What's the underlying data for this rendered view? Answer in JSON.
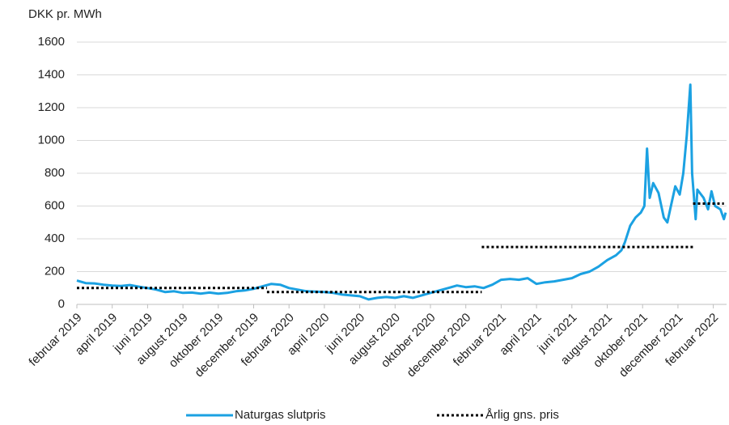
{
  "chart_data": {
    "type": "line",
    "y_label": "DKK pr. MWh",
    "xlim": [
      0,
      36.75
    ],
    "xticks": [
      {
        "value": 0,
        "label": "februar 2019"
      },
      {
        "value": 2,
        "label": "april 2019"
      },
      {
        "value": 4,
        "label": "juni 2019"
      },
      {
        "value": 6,
        "label": "august 2019"
      },
      {
        "value": 8,
        "label": "oktober 2019"
      },
      {
        "value": 10,
        "label": "december 2019"
      },
      {
        "value": 12,
        "label": "februar 2020"
      },
      {
        "value": 14,
        "label": "april 2020"
      },
      {
        "value": 16,
        "label": "juni 2020"
      },
      {
        "value": 18,
        "label": "august 2020"
      },
      {
        "value": 20,
        "label": "oktober 2020"
      },
      {
        "value": 22,
        "label": "december 2020"
      },
      {
        "value": 24,
        "label": "februar 2021"
      },
      {
        "value": 26,
        "label": "april 2021"
      },
      {
        "value": 28,
        "label": "juni 2021"
      },
      {
        "value": 30,
        "label": "august 2021"
      },
      {
        "value": 32,
        "label": "oktober 2021"
      },
      {
        "value": 34,
        "label": "december 2021"
      },
      {
        "value": 36,
        "label": "februar 2022"
      }
    ],
    "ylim": [
      0,
      1600
    ],
    "yticks": [
      0,
      200,
      400,
      600,
      800,
      1000,
      1200,
      1400,
      1600
    ],
    "grid": true,
    "legend": "bottom",
    "series": [
      {
        "name": "Naturgas slutpris",
        "color": "#1ba1e2",
        "style": "solid",
        "x": [
          0,
          0.5,
          1,
          1.5,
          2,
          2.5,
          3,
          3.5,
          4,
          4.5,
          5,
          5.5,
          6,
          6.5,
          7,
          7.5,
          8,
          8.5,
          9,
          9.5,
          10,
          10.5,
          11,
          11.5,
          12,
          12.5,
          13,
          13.5,
          14,
          14.5,
          15,
          15.5,
          16,
          16.5,
          17,
          17.5,
          18,
          18.5,
          19,
          19.5,
          20,
          20.5,
          21,
          21.5,
          22,
          22.5,
          23,
          23.5,
          24,
          24.5,
          25,
          25.5,
          26,
          26.5,
          27,
          27.5,
          28,
          28.5,
          29,
          29.5,
          30,
          30.5,
          30.8,
          31,
          31.3,
          31.6,
          31.9,
          32.1,
          32.25,
          32.4,
          32.6,
          32.9,
          33.2,
          33.4,
          33.6,
          33.85,
          34.1,
          34.3,
          34.5,
          34.7,
          34.8,
          35,
          35.1,
          35.45,
          35.7,
          35.9,
          36.1,
          36.4,
          36.6,
          36.7
        ],
        "values": [
          145,
          130,
          128,
          120,
          115,
          112,
          118,
          108,
          100,
          90,
          75,
          80,
          70,
          72,
          65,
          72,
          65,
          70,
          80,
          85,
          95,
          110,
          125,
          120,
          100,
          90,
          80,
          78,
          75,
          70,
          60,
          55,
          50,
          30,
          40,
          45,
          40,
          50,
          40,
          55,
          70,
          85,
          100,
          115,
          105,
          110,
          100,
          120,
          150,
          155,
          150,
          160,
          125,
          135,
          140,
          150,
          160,
          185,
          200,
          230,
          270,
          300,
          330,
          380,
          480,
          530,
          560,
          600,
          950,
          650,
          740,
          680,
          530,
          500,
          600,
          720,
          670,
          800,
          1030,
          1340,
          800,
          520,
          700,
          650,
          580,
          690,
          600,
          580,
          520,
          560
        ]
      },
      {
        "name": "Årlig gns. pris",
        "color": "#000000",
        "style": "dotted",
        "x": [
          0,
          10.75,
          null,
          10.75,
          22.9,
          null,
          22.9,
          34.85,
          null,
          34.85,
          36.6
        ],
        "values": [
          100,
          100,
          null,
          75,
          75,
          null,
          350,
          350,
          null,
          615,
          615
        ]
      }
    ]
  }
}
